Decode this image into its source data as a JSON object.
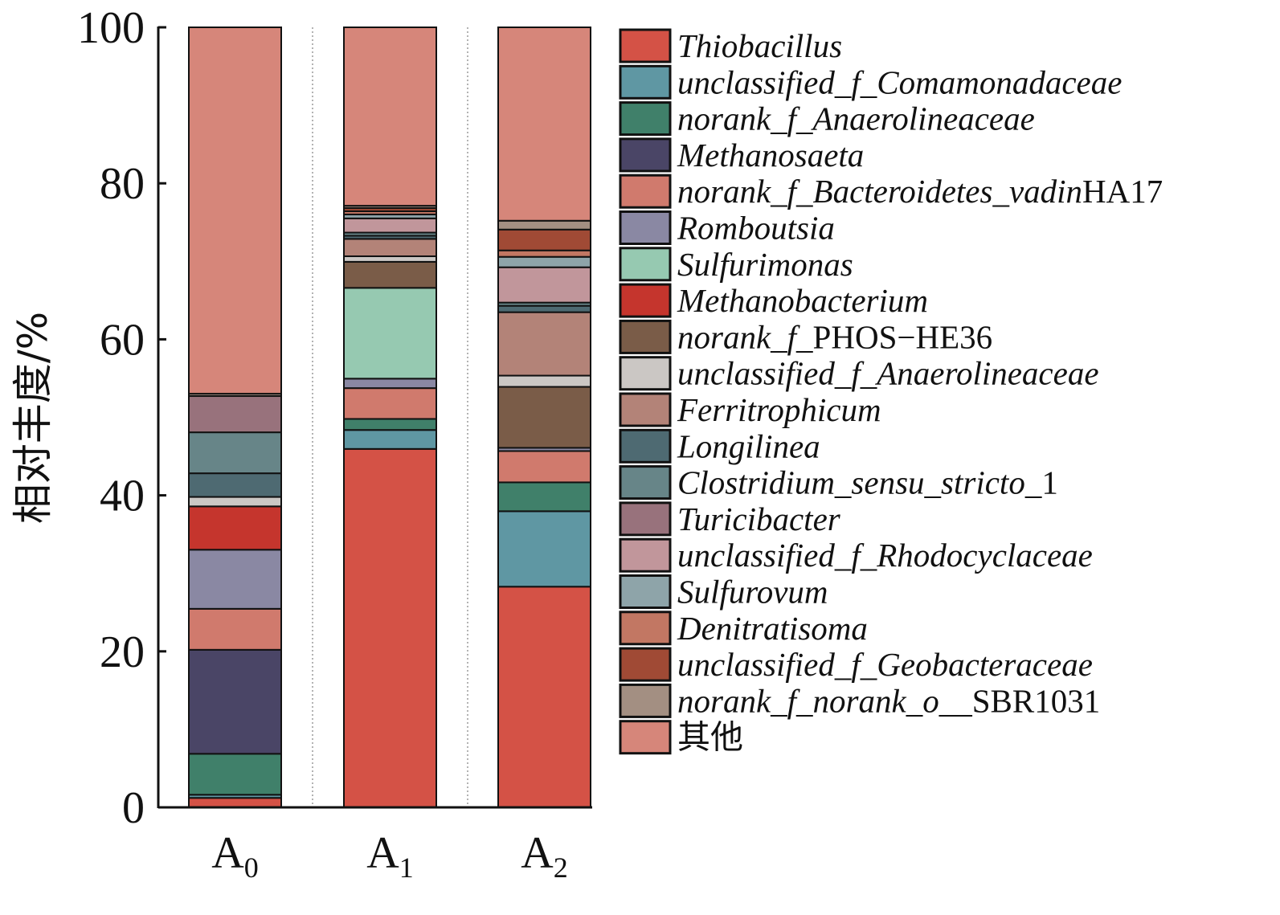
{
  "chart_data": {
    "type": "bar",
    "stacked": true,
    "ylabel": "相对丰度/%",
    "ylim": [
      0,
      100
    ],
    "yticks": [
      0,
      20,
      40,
      60,
      80,
      100
    ],
    "categories": [
      {
        "main": "A",
        "sub": "0"
      },
      {
        "main": "A",
        "sub": "1"
      },
      {
        "main": "A",
        "sub": "2"
      }
    ],
    "series": [
      {
        "name": "Thiobacillus",
        "parts": [
          {
            "t": "Thiobacillus",
            "i": true
          }
        ],
        "color": "#d45246",
        "values": [
          1.2,
          45.4,
          27.5
        ]
      },
      {
        "name": "unclassified_f_Comamonadaceae",
        "parts": [
          {
            "t": "unclassified_f_Comamonadaceae",
            "i": true
          }
        ],
        "color": "#5f97a3",
        "values": [
          0.4,
          2.4,
          9.4
        ]
      },
      {
        "name": "norank_f_Anaerolineaceae",
        "parts": [
          {
            "t": "norank_f_Anaerolineaceae",
            "i": true
          }
        ],
        "color": "#40806a",
        "values": [
          5.2,
          1.4,
          3.6
        ]
      },
      {
        "name": "Methanosaeta",
        "parts": [
          {
            "t": "Methanosaeta",
            "i": true
          }
        ],
        "color": "#4a4566",
        "values": [
          13.2,
          0.0,
          0.0
        ]
      },
      {
        "name": "norank_f_Bacteroidetes_vadinHA17",
        "parts": [
          {
            "t": "norank_f_Bacteroidetes_vadin",
            "i": true
          },
          {
            "t": "HA17",
            "i": false
          }
        ],
        "color": "#d07a6d",
        "values": [
          5.2,
          3.9,
          3.9
        ]
      },
      {
        "name": "Romboutsia",
        "parts": [
          {
            "t": "Romboutsia",
            "i": true
          }
        ],
        "color": "#8a88a3",
        "values": [
          7.5,
          1.2,
          0.4
        ]
      },
      {
        "name": "Sulfurimonas",
        "parts": [
          {
            "t": "Sulfurimonas",
            "i": true
          }
        ],
        "color": "#96c9b1",
        "values": [
          0.0,
          11.5,
          0.0
        ]
      },
      {
        "name": "Methanobacterium",
        "parts": [
          {
            "t": "Methanobacterium",
            "i": true
          }
        ],
        "color": "#c5352d",
        "values": [
          5.5,
          0.0,
          0.0
        ]
      },
      {
        "name": "norank_f_PHOS-HE36",
        "parts": [
          {
            "t": "norank_f_",
            "i": true
          },
          {
            "t": "PHOS−HE36",
            "i": false
          }
        ],
        "color": "#7a5c48",
        "values": [
          0.0,
          3.3,
          7.6
        ]
      },
      {
        "name": "unclassified_f_Anaerolineaceae",
        "parts": [
          {
            "t": "unclassified_f_Anaerolineaceae",
            "i": true
          }
        ],
        "color": "#cbc7c4",
        "values": [
          1.2,
          0.7,
          1.4
        ]
      },
      {
        "name": "Ferritrophicum",
        "parts": [
          {
            "t": "Ferritrophicum",
            "i": true
          }
        ],
        "color": "#b38378",
        "values": [
          0.0,
          2.2,
          7.9
        ]
      },
      {
        "name": "Longilinea",
        "parts": [
          {
            "t": "Longilinea",
            "i": true
          }
        ],
        "color": "#4e6a72",
        "values": [
          3.0,
          0.4,
          0.8
        ]
      },
      {
        "name": "Clostridium_sensu_stricto_1",
        "parts": [
          {
            "t": "Clostridium_sensu_stricto",
            "i": true
          },
          {
            "t": "_1",
            "i": false
          }
        ],
        "color": "#678588",
        "values": [
          5.2,
          0.4,
          0.4
        ]
      },
      {
        "name": "Turicibacter",
        "parts": [
          {
            "t": "Turicibacter",
            "i": true
          }
        ],
        "color": "#98727c",
        "values": [
          4.6,
          0.0,
          0.0
        ]
      },
      {
        "name": "unclassified_f_Rhodocyclaceae",
        "parts": [
          {
            "t": "unclassified_f_Rhodocyclaceae",
            "i": true
          }
        ],
        "color": "#c1969b",
        "values": [
          0.0,
          1.8,
          4.4
        ]
      },
      {
        "name": "Sulfurovum",
        "parts": [
          {
            "t": "Sulfurovum",
            "i": true
          }
        ],
        "color": "#8ea4a9",
        "values": [
          0.0,
          0.5,
          1.3
        ]
      },
      {
        "name": "Denitratisoma",
        "parts": [
          {
            "t": "Denitratisoma",
            "i": true
          }
        ],
        "color": "#c27763",
        "values": [
          0.0,
          0.4,
          0.8
        ]
      },
      {
        "name": "unclassified_f_Geobacteraceae",
        "parts": [
          {
            "t": "unclassified_f_Geobacteraceae",
            "i": true
          }
        ],
        "color": "#a04a35",
        "values": [
          0.0,
          0.4,
          2.6
        ]
      },
      {
        "name": "norank_f_norank_o__SBR1031",
        "parts": [
          {
            "t": "norank_f_norank_o",
            "i": true
          },
          {
            "t": "__SBR1031",
            "i": false
          }
        ],
        "color": "#a38f82",
        "values": [
          0.3,
          0.3,
          1.1
        ]
      },
      {
        "name": "其他",
        "parts": [
          {
            "t": "其他",
            "i": false
          }
        ],
        "color": "#d6867a",
        "values": [
          46.5,
          22.6,
          24.1
        ]
      }
    ]
  }
}
